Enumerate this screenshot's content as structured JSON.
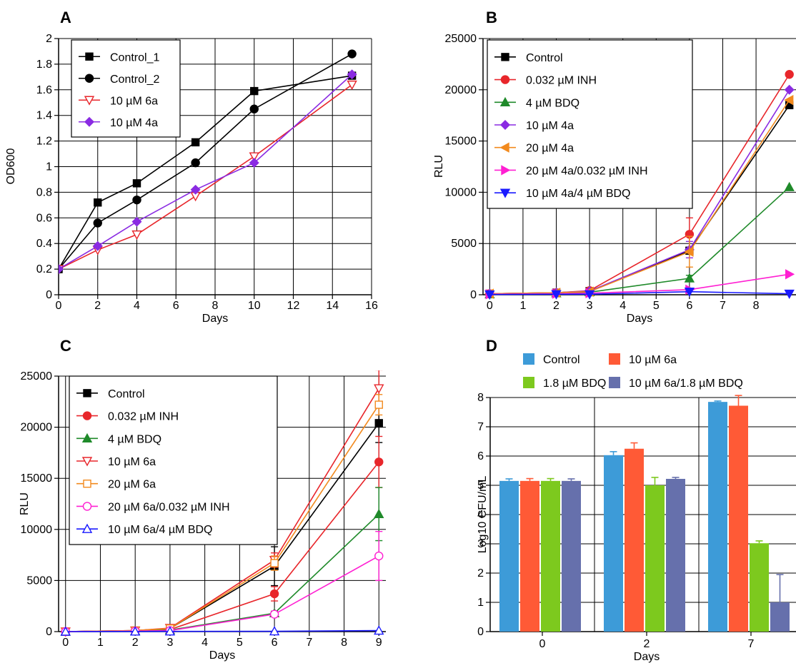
{
  "figure": {
    "panels": [
      "A",
      "B",
      "C",
      "D"
    ]
  },
  "chart_data": [
    {
      "panel": "A",
      "type": "line",
      "xlabel": "Days",
      "ylabel": "OD600",
      "xlim": [
        0,
        16
      ],
      "ylim": [
        0,
        2
      ],
      "xticks": [
        "0",
        "2",
        "4",
        "6",
        "8",
        "10",
        "12",
        "14",
        "16"
      ],
      "yticks": [
        "0",
        "0.2",
        "0.4",
        "0.6",
        "0.8",
        "1",
        "1.2",
        "1.4",
        "1.6",
        "1.8",
        "2"
      ],
      "grid": true,
      "legend_position": "top-left",
      "series": [
        {
          "name": "Control_1",
          "color": "#000000",
          "marker": "square",
          "x": [
            0,
            2,
            4,
            7,
            10,
            15
          ],
          "y": [
            0.2,
            0.72,
            0.87,
            1.19,
            1.59,
            1.71
          ]
        },
        {
          "name": "Control_2",
          "color": "#000000",
          "marker": "circle",
          "x": [
            0,
            2,
            4,
            7,
            10,
            15
          ],
          "y": [
            0.2,
            0.56,
            0.74,
            1.03,
            1.45,
            1.88
          ]
        },
        {
          "name": "10 µM 6a",
          "color": "#e8262b",
          "marker": "triangle-down-open",
          "x": [
            0,
            2,
            4,
            7,
            10,
            15
          ],
          "y": [
            0.2,
            0.35,
            0.47,
            0.77,
            1.08,
            1.64
          ]
        },
        {
          "name": "10 µM 4a",
          "color": "#8a2be2",
          "marker": "diamond",
          "x": [
            0,
            2,
            4,
            7,
            10,
            15
          ],
          "y": [
            0.2,
            0.38,
            0.57,
            0.82,
            1.03,
            1.72
          ]
        }
      ]
    },
    {
      "panel": "B",
      "type": "line",
      "xlabel": "Days",
      "ylabel": "RLU",
      "xlim": [
        -0.2,
        9.2
      ],
      "ylim": [
        0,
        25000
      ],
      "xticks": [
        "0",
        "1",
        "2",
        "3",
        "4",
        "5",
        "6",
        "7",
        "8"
      ],
      "yticks": [
        "0",
        "5000",
        "10000",
        "15000",
        "20000",
        "25000"
      ],
      "grid": true,
      "legend_position": "top-left",
      "series": [
        {
          "name": "Control",
          "color": "#000000",
          "marker": "square",
          "x": [
            0,
            2,
            3,
            6,
            9
          ],
          "y": [
            100,
            200,
            350,
            4300,
            18500
          ],
          "err": [
            0,
            0,
            0,
            300,
            0
          ]
        },
        {
          "name": "0.032 µM INH",
          "color": "#e8262b",
          "marker": "circle",
          "x": [
            0,
            2,
            3,
            6,
            9
          ],
          "y": [
            100,
            200,
            400,
            5900,
            21500
          ],
          "err": [
            0,
            0,
            0,
            1600,
            0
          ]
        },
        {
          "name": "4 µM BDQ",
          "color": "#1f8a2a",
          "marker": "triangle-up",
          "x": [
            0,
            2,
            3,
            6,
            9
          ],
          "y": [
            50,
            150,
            250,
            1600,
            10500
          ],
          "err": [
            0,
            0,
            0,
            300,
            0
          ]
        },
        {
          "name": "10 µM 4a",
          "color": "#8a2be2",
          "marker": "diamond",
          "x": [
            0,
            2,
            3,
            6,
            9
          ],
          "y": [
            100,
            200,
            350,
            4400,
            20000
          ],
          "err": [
            0,
            0,
            0,
            800,
            0
          ]
        },
        {
          "name": "20 µM 4a",
          "color": "#f28a1e",
          "marker": "triangle-left",
          "x": [
            0,
            2,
            3,
            6,
            9
          ],
          "y": [
            100,
            200,
            300,
            4200,
            19000
          ],
          "err": [
            0,
            0,
            0,
            1500,
            0
          ]
        },
        {
          "name": "20 µM 4a/0.032 µM INH",
          "color": "#ff1fd2",
          "marker": "triangle-right",
          "x": [
            0,
            2,
            3,
            6,
            9
          ],
          "y": [
            50,
            100,
            150,
            500,
            2000
          ],
          "err": [
            0,
            0,
            0,
            0,
            0
          ]
        },
        {
          "name": "10 µM 4a/4 µM BDQ",
          "color": "#1a1aff",
          "marker": "triangle-down",
          "x": [
            0,
            2,
            3,
            6,
            9
          ],
          "y": [
            20,
            50,
            50,
            300,
            100
          ],
          "err": [
            0,
            0,
            0,
            0,
            0
          ]
        }
      ]
    },
    {
      "panel": "C",
      "type": "line",
      "xlabel": "Days",
      "ylabel": "RLU",
      "xlim": [
        -0.2,
        9.2
      ],
      "ylim": [
        0,
        25000
      ],
      "xticks": [
        "0",
        "1",
        "2",
        "3",
        "4",
        "5",
        "6",
        "7",
        "8",
        "9"
      ],
      "yticks": [
        "0",
        "5000",
        "10000",
        "15000",
        "20000",
        "25000"
      ],
      "grid": true,
      "legend_position": "top-left",
      "series": [
        {
          "name": "Control",
          "color": "#000000",
          "marker": "square",
          "x": [
            0,
            2,
            3,
            6,
            9
          ],
          "y": [
            0,
            100,
            300,
            6400,
            20400
          ],
          "err": [
            0,
            0,
            0,
            1900,
            1900
          ]
        },
        {
          "name": "0.032 µM INH",
          "color": "#e8262b",
          "marker": "circle",
          "x": [
            0,
            2,
            3,
            6,
            9
          ],
          "y": [
            0,
            80,
            200,
            3700,
            16600
          ],
          "err": [
            0,
            0,
            0,
            700,
            2500
          ]
        },
        {
          "name": "4 µM BDQ",
          "color": "#1f8a2a",
          "marker": "triangle-up",
          "x": [
            0,
            2,
            3,
            6,
            9
          ],
          "y": [
            0,
            50,
            150,
            1800,
            11500
          ],
          "err": [
            0,
            0,
            0,
            200,
            2600
          ]
        },
        {
          "name": "10 µM 6a",
          "color": "#e8262b",
          "marker": "triangle-down-open",
          "x": [
            0,
            2,
            3,
            6,
            9
          ],
          "y": [
            0,
            100,
            350,
            7000,
            23800
          ],
          "err": [
            0,
            0,
            0,
            700,
            1800
          ]
        },
        {
          "name": "20 µM 6a",
          "color": "#f28a1e",
          "marker": "square-open",
          "x": [
            0,
            2,
            3,
            6,
            9
          ],
          "y": [
            0,
            100,
            300,
            6700,
            22200
          ],
          "err": [
            0,
            0,
            0,
            700,
            1000
          ]
        },
        {
          "name": "20 µM 6a/0.032 µM INH",
          "color": "#ff1fd2",
          "marker": "circle-open",
          "x": [
            0,
            2,
            3,
            6,
            9
          ],
          "y": [
            0,
            50,
            100,
            1700,
            7400
          ],
          "err": [
            0,
            0,
            0,
            200,
            2400
          ]
        },
        {
          "name": "10 µM 6a/4 µM BDQ",
          "color": "#1a1aff",
          "marker": "triangle-up-open",
          "x": [
            0,
            2,
            3,
            6,
            9
          ],
          "y": [
            0,
            10,
            20,
            30,
            100
          ],
          "err": [
            0,
            0,
            0,
            0,
            0
          ]
        }
      ]
    },
    {
      "panel": "D",
      "type": "bar",
      "xlabel": "Days",
      "ylabel": "Log10 CFU/mL",
      "categories": [
        "0",
        "2",
        "7"
      ],
      "ylim": [
        0,
        8
      ],
      "yticks": [
        "0",
        "1",
        "2",
        "3",
        "4",
        "5",
        "6",
        "7",
        "8"
      ],
      "grid": true,
      "legend_position": "top",
      "series": [
        {
          "name": "Control",
          "color": "#3d9bd8",
          "values": [
            5.15,
            6.03,
            7.85
          ],
          "err": [
            0.07,
            0.12,
            0.03
          ]
        },
        {
          "name": "10 µM 6a",
          "color": "#ff5a36",
          "values": [
            5.15,
            6.25,
            7.72
          ],
          "err": [
            0.08,
            0.2,
            0.35
          ]
        },
        {
          "name": "1.8 µM BDQ",
          "color": "#7dc91e",
          "values": [
            5.15,
            5.0,
            3.02
          ],
          "err": [
            0.08,
            0.27,
            0.08
          ]
        },
        {
          "name": "10 µM 6a/1.8 µM BDQ",
          "color": "#6670ac",
          "values": [
            5.15,
            5.22,
            1.0
          ],
          "err": [
            0.07,
            0.05,
            0.95
          ]
        }
      ]
    }
  ]
}
